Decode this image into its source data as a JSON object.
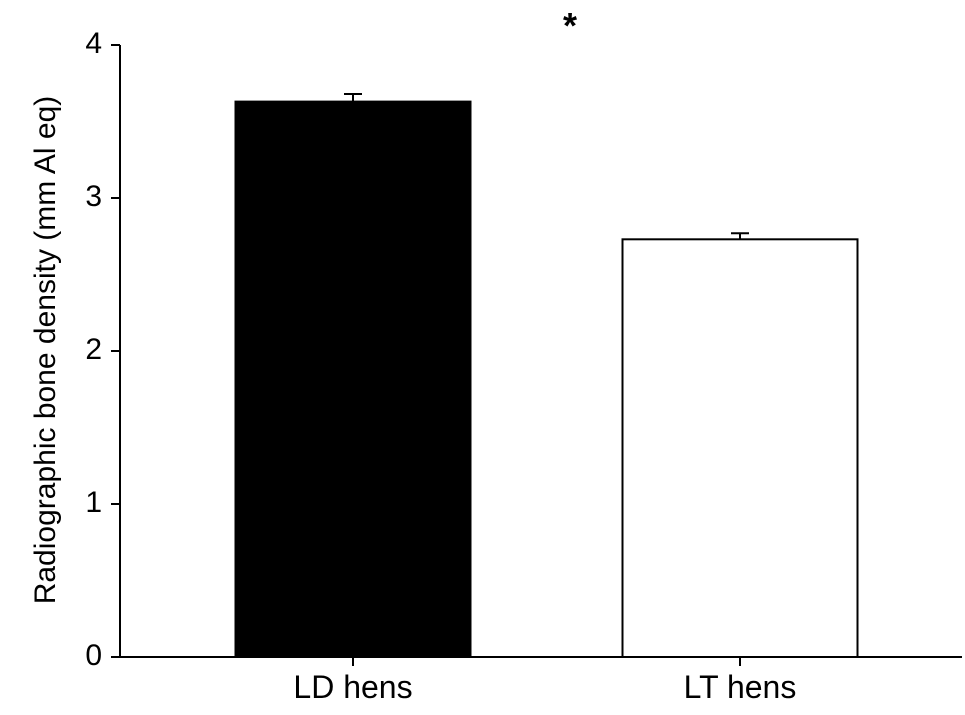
{
  "chart_data": {
    "type": "bar",
    "categories": [
      "LD hens",
      "LT hens"
    ],
    "values": [
      3.63,
      2.73
    ],
    "error": [
      0.05,
      0.04
    ],
    "ylabel": "Radiographic bone density (mm Al eq)",
    "xlabel": "",
    "ylim": [
      0,
      4
    ],
    "yticks": [
      "0",
      "1",
      "2",
      "3",
      "4"
    ],
    "bar_colors": [
      "#000000",
      "#ffffff"
    ],
    "annotation": "*"
  }
}
